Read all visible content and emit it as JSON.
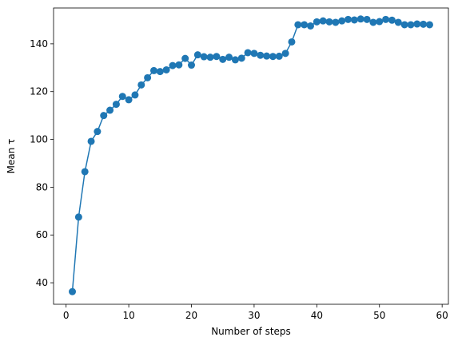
{
  "chart_data": {
    "type": "line",
    "title": "",
    "xlabel": "Number of steps",
    "ylabel": "Mean τ",
    "xlim": [
      -2,
      61
    ],
    "ylim": [
      31,
      155
    ],
    "xticks": [
      0,
      10,
      20,
      30,
      40,
      50,
      60
    ],
    "yticks": [
      40,
      60,
      80,
      100,
      120,
      140
    ],
    "grid": false,
    "legend": "none",
    "series": [
      {
        "color": "#1f77b4",
        "marker": "circle",
        "x": [
          1,
          2,
          3,
          4,
          5,
          6,
          7,
          8,
          9,
          10,
          11,
          12,
          13,
          14,
          15,
          16,
          17,
          18,
          19,
          20,
          21,
          22,
          23,
          24,
          25,
          26,
          27,
          28,
          29,
          30,
          31,
          32,
          33,
          34,
          35,
          36,
          37,
          38,
          39,
          40,
          41,
          42,
          43,
          44,
          45,
          46,
          47,
          48,
          49,
          50,
          51,
          52,
          53,
          54,
          55,
          56,
          57,
          58
        ],
        "y": [
          36.3,
          67.5,
          86.5,
          99.2,
          103.3,
          110.0,
          112.2,
          114.7,
          118.0,
          116.6,
          118.6,
          122.8,
          125.8,
          128.8,
          128.4,
          129.1,
          130.9,
          131.2,
          133.9,
          131.1,
          135.4,
          134.6,
          134.4,
          134.7,
          133.5,
          134.4,
          133.3,
          134.0,
          136.3,
          136.0,
          135.2,
          134.9,
          134.7,
          134.8,
          136.0,
          140.8,
          148.0,
          148.0,
          147.5,
          149.2,
          149.6,
          149.2,
          149.0,
          149.6,
          150.2,
          150.0,
          150.4,
          150.2,
          149.0,
          149.3,
          150.2,
          149.9,
          149.0,
          148.0,
          148.0,
          148.3,
          148.2,
          148.0
        ]
      }
    ]
  }
}
